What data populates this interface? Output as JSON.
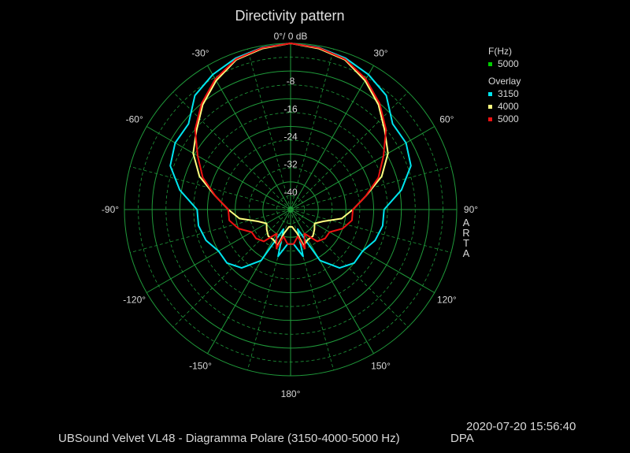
{
  "header": {
    "title": "Directivity pattern"
  },
  "legend": {
    "freq_header": "F(Hz)",
    "freq_items": [
      {
        "label": "5000",
        "color": "#00cc00"
      }
    ],
    "overlay_header": "Overlay",
    "overlay_items": [
      {
        "label": "3150",
        "color": "#00e5ee"
      },
      {
        "label": "4000",
        "color": "#ffff80"
      },
      {
        "label": "5000",
        "color": "#ee1111"
      }
    ]
  },
  "brand": "ARTA",
  "footer": {
    "caption": "UBSound Velvet VL48 - Diagramma Polare (3150-4000-5000 Hz)",
    "tag": "DPA",
    "datetime": "2020-07-20  15:56:40"
  },
  "chart_data": {
    "type": "polar",
    "title": "Directivity pattern",
    "radial_unit": "dB",
    "radial_range": [
      -48,
      0
    ],
    "radial_labels": [
      "0°/ 0 dB",
      "-8",
      "-16",
      "-24",
      "-32",
      "-40"
    ],
    "radial_label_values": [
      0,
      -8,
      -16,
      -24,
      -32,
      -40
    ],
    "angle_labels": [
      {
        "angle": -30,
        "label": "-30°"
      },
      {
        "angle": 30,
        "label": "30°"
      },
      {
        "angle": -60,
        "label": "-60°"
      },
      {
        "angle": 60,
        "label": "60°"
      },
      {
        "angle": -90,
        "label": "-90°"
      },
      {
        "angle": 90,
        "label": "90°"
      },
      {
        "angle": -120,
        "label": "-120°"
      },
      {
        "angle": 120,
        "label": "120°"
      },
      {
        "angle": -150,
        "label": "-150°"
      },
      {
        "angle": 150,
        "label": "150°"
      },
      {
        "angle": 180,
        "label": "180°"
      }
    ],
    "grid": true,
    "series": [
      {
        "name": "3150",
        "color": "#00e5ee",
        "angles": [
          -175,
          -165,
          -160,
          -150,
          -140,
          -130,
          -120,
          -110,
          -100,
          -90,
          -80,
          -70,
          -60,
          -50,
          -40,
          -30,
          -20,
          -10,
          0,
          10,
          20,
          30,
          40,
          50,
          60,
          70,
          80,
          90,
          100,
          110,
          120,
          130,
          140,
          150,
          160,
          165,
          175
        ],
        "values": [
          -38,
          -34,
          -42,
          -31,
          -26,
          -24,
          -24,
          -22,
          -21,
          -21,
          -15.5,
          -11,
          -9.5,
          -9.5,
          -5,
          -3,
          -1.5,
          -0.5,
          0,
          -0.5,
          -1.5,
          -3,
          -5,
          -9.5,
          -9.5,
          -11,
          -15.5,
          -21,
          -21,
          -22,
          -24,
          -24,
          -26,
          -31,
          -42,
          -34,
          -38
        ]
      },
      {
        "name": "4000",
        "color": "#ffff80",
        "angles": [
          -175,
          -165,
          -160,
          -150,
          -140,
          -130,
          -120,
          -110,
          -100,
          -90,
          -80,
          -70,
          -60,
          -50,
          -40,
          -30,
          -20,
          -10,
          0,
          10,
          20,
          30,
          40,
          50,
          60,
          70,
          80,
          90,
          100,
          110,
          120,
          130,
          140,
          150,
          160,
          165,
          175
        ],
        "values": [
          -43,
          -41,
          -37,
          -38,
          -38,
          -39,
          -40,
          -38,
          -33,
          -30,
          -26,
          -20,
          -15.5,
          -12.5,
          -8.5,
          -5,
          -2,
          -0.8,
          0,
          -0.8,
          -2,
          -5,
          -8.5,
          -12.5,
          -15.5,
          -20,
          -26,
          -30,
          -33,
          -38,
          -40,
          -39,
          -38,
          -38,
          -37,
          -41,
          -43
        ]
      },
      {
        "name": "5000",
        "color": "#ee1111",
        "angles": [
          -175,
          -165,
          -160,
          -150,
          -140,
          -130,
          -120,
          -110,
          -100,
          -90,
          -80,
          -70,
          -60,
          -50,
          -40,
          -30,
          -20,
          -10,
          0,
          10,
          20,
          30,
          40,
          50,
          60,
          70,
          80,
          90,
          100,
          110,
          120,
          130,
          140,
          150,
          160,
          165,
          175
        ],
        "values": [
          -38,
          -40,
          -36,
          -40,
          -36,
          -35,
          -35,
          -32,
          -30,
          -30,
          -26,
          -21,
          -17,
          -12,
          -8,
          -4.5,
          -1.8,
          -0.6,
          0,
          -0.6,
          -1.8,
          -4.5,
          -8,
          -12,
          -17,
          -21,
          -26,
          -30,
          -30,
          -32,
          -35,
          -35,
          -36,
          -40,
          -36,
          -40,
          -38
        ]
      }
    ]
  }
}
